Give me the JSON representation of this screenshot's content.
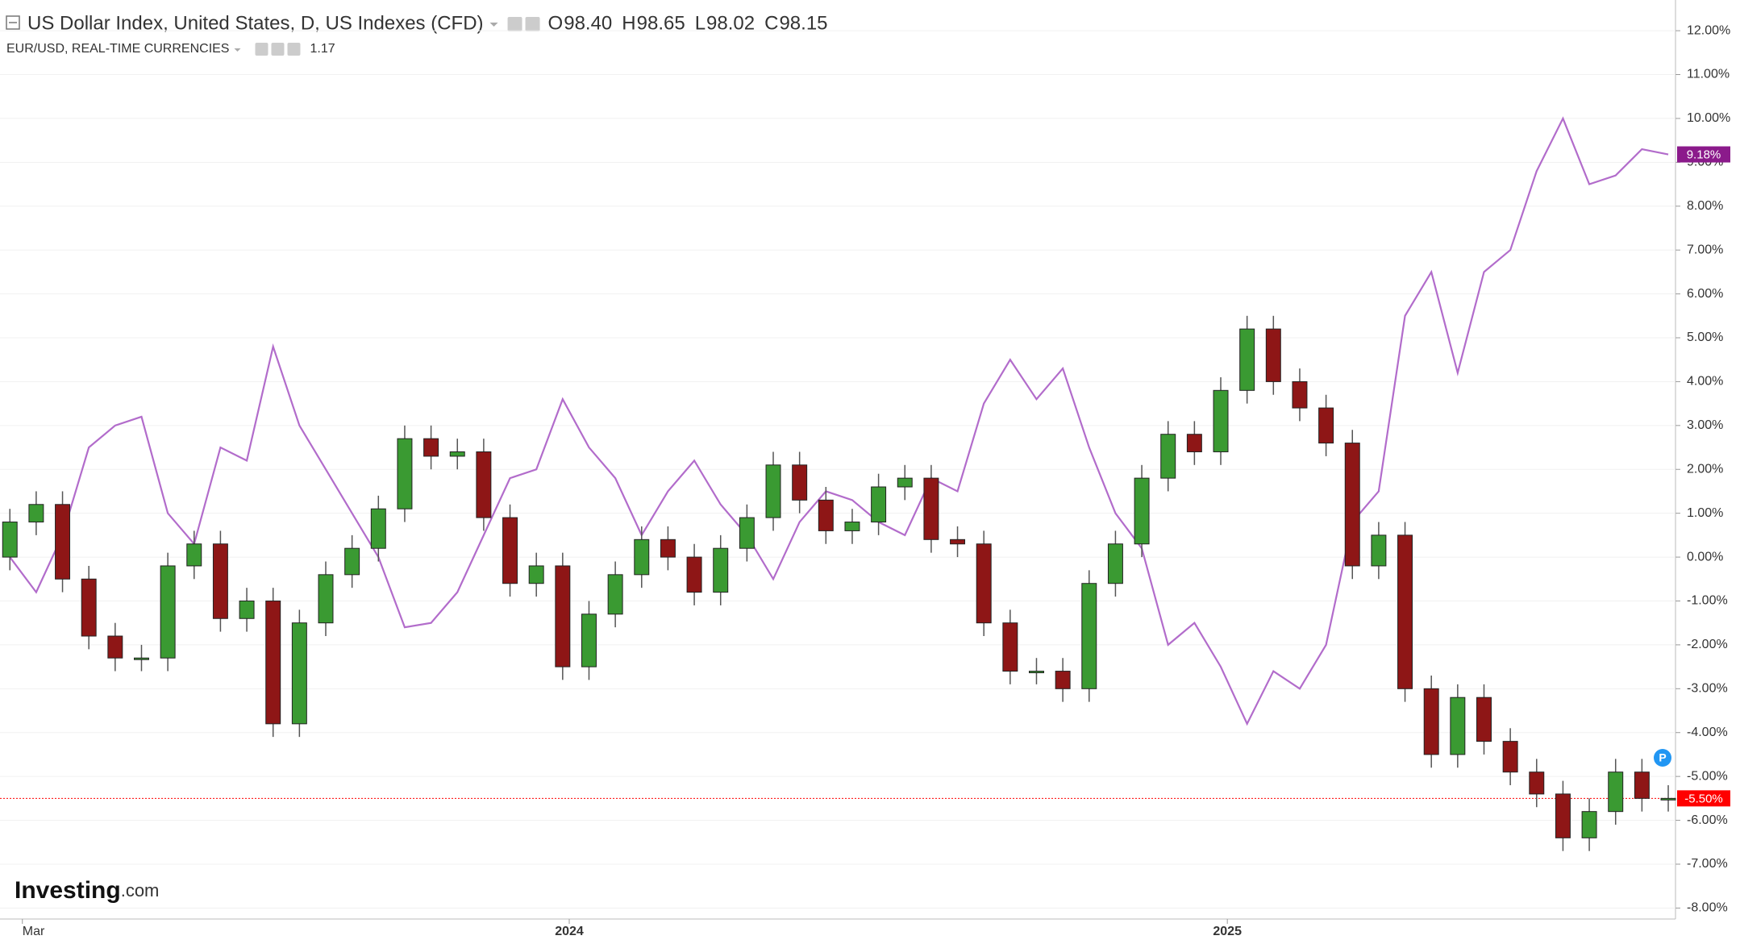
{
  "header": {
    "title": "US Dollar Index, United States, D, US Indexes (CFD)",
    "ohlc_letters": [
      "O",
      "H",
      "L",
      "C"
    ],
    "ohlc_values": [
      "98.40",
      "98.65",
      "98.02",
      "98.15"
    ],
    "compare": "EUR/USD, REAL-TIME CURRENCIES",
    "compare_value": "1.17"
  },
  "brand": {
    "name": "Investing",
    "suffix": ".com"
  },
  "marker": "P",
  "chart_data": {
    "type": "candlestick",
    "xlim": [
      2023.135,
      2025.681
    ],
    "xticks": [
      {
        "value": 2023.169,
        "label": "Mar"
      },
      2024,
      2025
    ],
    "ylim": [
      -8.25,
      12.7
    ],
    "yticks": [
      {
        "value": 12,
        "label": "12.00%"
      },
      {
        "value": 11,
        "label": "11.00%"
      },
      {
        "value": 10,
        "label": "10.00%"
      },
      {
        "value": 9,
        "label": "9.00%"
      },
      {
        "value": 8,
        "label": "8.00%"
      },
      {
        "value": 7,
        "label": "7.00%"
      },
      {
        "value": 6,
        "label": "6.00%"
      },
      {
        "value": 5,
        "label": "5.00%"
      },
      {
        "value": 4,
        "label": "4.00%"
      },
      {
        "value": 3,
        "label": "3.00%"
      },
      {
        "value": 2,
        "label": "2.00%"
      },
      {
        "value": 1,
        "label": "1.00%"
      },
      {
        "value": 0,
        "label": "0.00%"
      },
      {
        "value": -1,
        "label": "-1.00%"
      },
      {
        "value": -2,
        "label": "-2.00%"
      },
      {
        "value": -3,
        "label": "-3.00%"
      },
      {
        "value": -4,
        "label": "-4.00%"
      },
      {
        "value": -5,
        "label": "-5.00%"
      },
      {
        "value": -6,
        "label": "-6.00%"
      },
      {
        "value": -7,
        "label": "-7.00%"
      },
      {
        "value": -8,
        "label": "-8.00%"
      }
    ],
    "grid": true,
    "x": [
      2023.15,
      2023.19,
      2023.23,
      2023.27,
      2023.31,
      2023.35,
      2023.39,
      2023.43,
      2023.47,
      2023.51,
      2023.55,
      2023.59,
      2023.63,
      2023.67,
      2023.71,
      2023.75,
      2023.79,
      2023.83,
      2023.87,
      2023.91,
      2023.95,
      2023.99,
      2024.03,
      2024.07,
      2024.11,
      2024.15,
      2024.19,
      2024.23,
      2024.27,
      2024.31,
      2024.35,
      2024.39,
      2024.43,
      2024.47,
      2024.51,
      2024.55,
      2024.59,
      2024.63,
      2024.67,
      2024.71,
      2024.75,
      2024.79,
      2024.83,
      2024.87,
      2024.91,
      2024.95,
      2024.99,
      2025.03,
      2025.07,
      2025.11,
      2025.15,
      2025.19,
      2025.23,
      2025.27,
      2025.31,
      2025.35,
      2025.39,
      2025.43,
      2025.47,
      2025.51,
      2025.55,
      2025.59,
      2025.63,
      2025.67
    ],
    "candles": {
      "up_color": "#3a9a32",
      "down_color": "#8e1616",
      "last_value": -5.5,
      "last_label": "-5.50%",
      "last_color": "#ff0000",
      "open": [
        0,
        0.8,
        1.2,
        -0.5,
        -1.8,
        -2.3,
        -2.3,
        -0.2,
        0.3,
        -1.4,
        -1.0,
        -3.8,
        -1.5,
        -0.4,
        0.2,
        1.1,
        2.7,
        2.3,
        2.4,
        0.9,
        -0.6,
        -0.2,
        -2.5,
        -1.3,
        -0.4,
        0.4,
        0.0,
        -0.8,
        0.2,
        0.9,
        2.1,
        1.3,
        0.6,
        0.8,
        1.6,
        1.8,
        0.4,
        0.3,
        -1.5,
        -2.6,
        -2.6,
        -3.0,
        -0.6,
        0.3,
        1.8,
        2.8,
        2.4,
        3.8,
        5.2,
        4.0,
        3.4,
        2.6,
        -0.2,
        0.5,
        -3.0,
        -4.5,
        -3.2,
        -4.2,
        -4.9,
        -5.4,
        -6.4,
        -5.8,
        -4.9,
        -5.5
      ],
      "high": [
        1.1,
        1.5,
        1.5,
        -0.2,
        -1.5,
        -2.0,
        0.1,
        0.6,
        0.6,
        -0.7,
        -0.7,
        -1.2,
        -0.1,
        0.5,
        1.4,
        3.0,
        3.0,
        2.7,
        2.7,
        1.2,
        0.1,
        0.1,
        -1.0,
        -0.1,
        0.7,
        0.7,
        0.3,
        0.5,
        1.2,
        2.4,
        2.4,
        1.6,
        1.1,
        1.9,
        2.1,
        2.1,
        0.7,
        0.6,
        -1.2,
        -2.3,
        -2.3,
        -0.3,
        0.6,
        2.1,
        3.1,
        3.1,
        4.1,
        5.5,
        5.5,
        4.3,
        3.7,
        2.9,
        0.8,
        0.8,
        -2.7,
        -2.9,
        -2.9,
        -3.9,
        -4.6,
        -5.1,
        -5.5,
        -4.6,
        -4.6,
        -5.2
      ],
      "low": [
        -0.3,
        0.5,
        -0.8,
        -2.1,
        -2.6,
        -2.6,
        -2.6,
        -0.5,
        -1.7,
        -1.7,
        -4.1,
        -4.1,
        -1.8,
        -0.7,
        -0.1,
        0.8,
        2.0,
        2.0,
        0.6,
        -0.9,
        -0.9,
        -2.8,
        -2.8,
        -1.6,
        -0.7,
        -0.3,
        -1.1,
        -1.1,
        -0.1,
        0.6,
        1.0,
        0.3,
        0.3,
        0.5,
        1.3,
        0.1,
        0.0,
        -1.8,
        -2.9,
        -2.9,
        -3.3,
        -3.3,
        -0.9,
        0.0,
        1.5,
        2.1,
        2.1,
        3.5,
        3.7,
        3.1,
        2.3,
        -0.5,
        -0.5,
        -3.3,
        -4.8,
        -4.8,
        -4.5,
        -5.2,
        -5.7,
        -6.7,
        -6.7,
        -6.1,
        -5.8,
        -5.8
      ],
      "close": [
        0.8,
        1.2,
        -0.5,
        -1.8,
        -2.3,
        -2.3,
        -0.2,
        0.3,
        -1.4,
        -1.0,
        -3.8,
        -1.5,
        -0.4,
        0.2,
        1.1,
        2.7,
        2.3,
        2.4,
        0.9,
        -0.6,
        -0.2,
        -2.5,
        -1.3,
        -0.4,
        0.4,
        0.0,
        -0.8,
        0.2,
        0.9,
        2.1,
        1.3,
        0.6,
        0.8,
        1.6,
        1.8,
        0.4,
        0.3,
        -1.5,
        -2.6,
        -2.6,
        -3.0,
        -0.6,
        0.3,
        1.8,
        2.8,
        2.4,
        3.8,
        5.2,
        4.0,
        3.4,
        2.6,
        -0.2,
        0.5,
        -3.0,
        -4.5,
        -3.2,
        -4.2,
        -4.9,
        -5.4,
        -6.4,
        -5.8,
        -4.9,
        -5.5,
        -5.5
      ]
    },
    "line": {
      "color": "#b26ccb",
      "label_color": "#8b1a8b",
      "last_value": 9.18,
      "last_label": "9.18%",
      "values": [
        0,
        -0.8,
        0.5,
        2.5,
        3.0,
        3.2,
        1.0,
        0.3,
        2.5,
        2.2,
        4.8,
        3.0,
        2.0,
        1.0,
        0.0,
        -1.6,
        -1.5,
        -0.8,
        0.5,
        1.8,
        2.0,
        3.6,
        2.5,
        1.8,
        0.5,
        1.5,
        2.2,
        1.2,
        0.5,
        -0.5,
        0.8,
        1.5,
        1.3,
        0.8,
        0.5,
        1.8,
        1.5,
        3.5,
        4.5,
        3.6,
        4.3,
        2.5,
        1.0,
        0.2,
        -2.0,
        -1.5,
        -2.5,
        -3.8,
        -2.6,
        -3.0,
        -2.0,
        0.8,
        1.5,
        5.5,
        6.5,
        4.2,
        6.5,
        7.0,
        8.8,
        10.0,
        8.5,
        8.7,
        9.3,
        9.18
      ]
    }
  }
}
